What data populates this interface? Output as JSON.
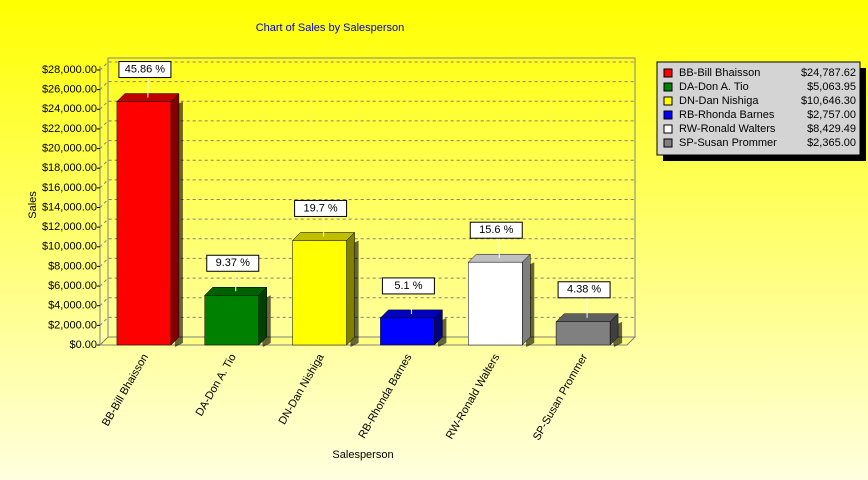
{
  "chart_data": {
    "type": "bar",
    "title": "Chart of Sales by Salesperson",
    "x_label": "Salesperson",
    "y_label": "Sales",
    "categories": [
      "BB-Bill Bhaisson",
      "DA-Don A. Tio",
      "DN-Dan Nishiga",
      "RB-Rhonda Barnes",
      "RW-Ronald Walters",
      "SP-Susan Prommer"
    ],
    "values": [
      24787.62,
      5063.95,
      10646.3,
      2757.0,
      8429.49,
      2365.0
    ],
    "value_labels": [
      "$24,787.62",
      "$5,063.95",
      "$10,646.30",
      "$2,757.00",
      "$8,429.49",
      "$2,365.00"
    ],
    "percent_labels": [
      "45.86 %",
      "9.37 %",
      "19.7 %",
      "5.1 %",
      "15.6 %",
      "4.38 %"
    ],
    "colors": [
      "#ff0000",
      "#008000",
      "#ffff00",
      "#0000ff",
      "#ffffff",
      "#808080"
    ],
    "ylim": [
      0,
      28000
    ],
    "yticks": [
      {
        "value": 0,
        "label": "$0.00"
      },
      {
        "value": 2000,
        "label": "$2,000.00"
      },
      {
        "value": 4000,
        "label": "$4,000.00"
      },
      {
        "value": 6000,
        "label": "$6,000.00"
      },
      {
        "value": 8000,
        "label": "$8,000.00"
      },
      {
        "value": 10000,
        "label": "$10,000.00"
      },
      {
        "value": 12000,
        "label": "$12,000.00"
      },
      {
        "value": 14000,
        "label": "$14,000.00"
      },
      {
        "value": 16000,
        "label": "$16,000.00"
      },
      {
        "value": 18000,
        "label": "$18,000.00"
      },
      {
        "value": 20000,
        "label": "$20,000.00"
      },
      {
        "value": 22000,
        "label": "$22,000.00"
      },
      {
        "value": 24000,
        "label": "$24,000.00"
      },
      {
        "value": 26000,
        "label": "$26,000.00"
      },
      {
        "value": 28000,
        "label": "$28,000.00"
      }
    ],
    "grid": true,
    "legend": "right"
  }
}
